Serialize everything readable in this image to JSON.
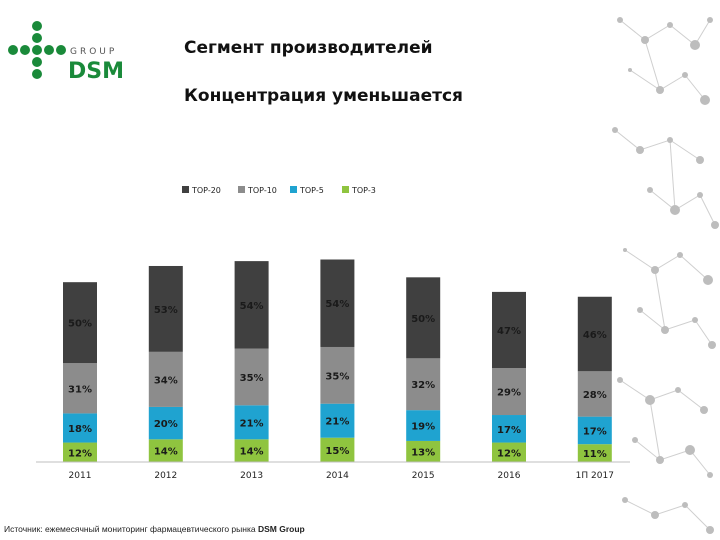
{
  "header": {
    "title": "Сегмент производителей",
    "subtitle": "Концентрация уменьшается"
  },
  "logo": {
    "group_text": "GROUP",
    "brand_text": "DSM",
    "brand_color": "#1a8a3a"
  },
  "footer": {
    "source_prefix": "Источник: ежемесячный мониторинг фармацевтического рынка ",
    "source_brand": "DSM Group"
  },
  "chart_data": {
    "type": "bar",
    "stacked": true,
    "categories": [
      "2011",
      "2012",
      "2013",
      "2014",
      "2015",
      "2016",
      "1П 2017"
    ],
    "series": [
      {
        "name": "TOP-20",
        "color": "#404040",
        "values": [
          50,
          53,
          54,
          54,
          50,
          47,
          46
        ]
      },
      {
        "name": "TOP-10",
        "color": "#8c8c8c",
        "values": [
          31,
          34,
          35,
          35,
          32,
          29,
          28
        ]
      },
      {
        "name": "TOP-5",
        "color": "#1fa3d0",
        "values": [
          18,
          20,
          21,
          21,
          19,
          17,
          17
        ]
      },
      {
        "name": "TOP-3",
        "color": "#8fc43f",
        "values": [
          12,
          14,
          14,
          15,
          13,
          12,
          11
        ]
      }
    ],
    "value_suffix": "%",
    "legend_position": "top",
    "grid": false
  }
}
